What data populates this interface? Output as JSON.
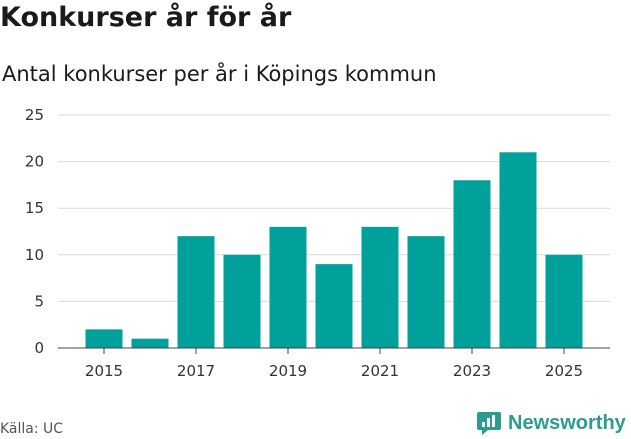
{
  "header": {
    "title": "Konkurser år för år",
    "subtitle": "Antal konkurser per år i Köpings kommun"
  },
  "footer": {
    "source": "Källa: UC",
    "brand": "Newsworthy",
    "brand_icon": "bar-chart-bubble-icon"
  },
  "colors": {
    "bar": "#00a19a",
    "grid": "#d9d9d9",
    "brand": "#2a9d8f"
  },
  "chart_data": {
    "type": "bar",
    "categories": [
      "2015",
      "2016",
      "2017",
      "2018",
      "2019",
      "2020",
      "2021",
      "2022",
      "2023",
      "2024",
      "2025"
    ],
    "values": [
      2,
      1,
      12,
      10,
      13,
      9,
      13,
      12,
      18,
      21,
      10
    ],
    "xticks": [
      "2015",
      "2017",
      "2019",
      "2021",
      "2023",
      "2025"
    ],
    "yticks": [
      0,
      5,
      10,
      15,
      20,
      25
    ],
    "ylim": [
      0,
      25
    ],
    "grid": true,
    "legend": "none"
  }
}
